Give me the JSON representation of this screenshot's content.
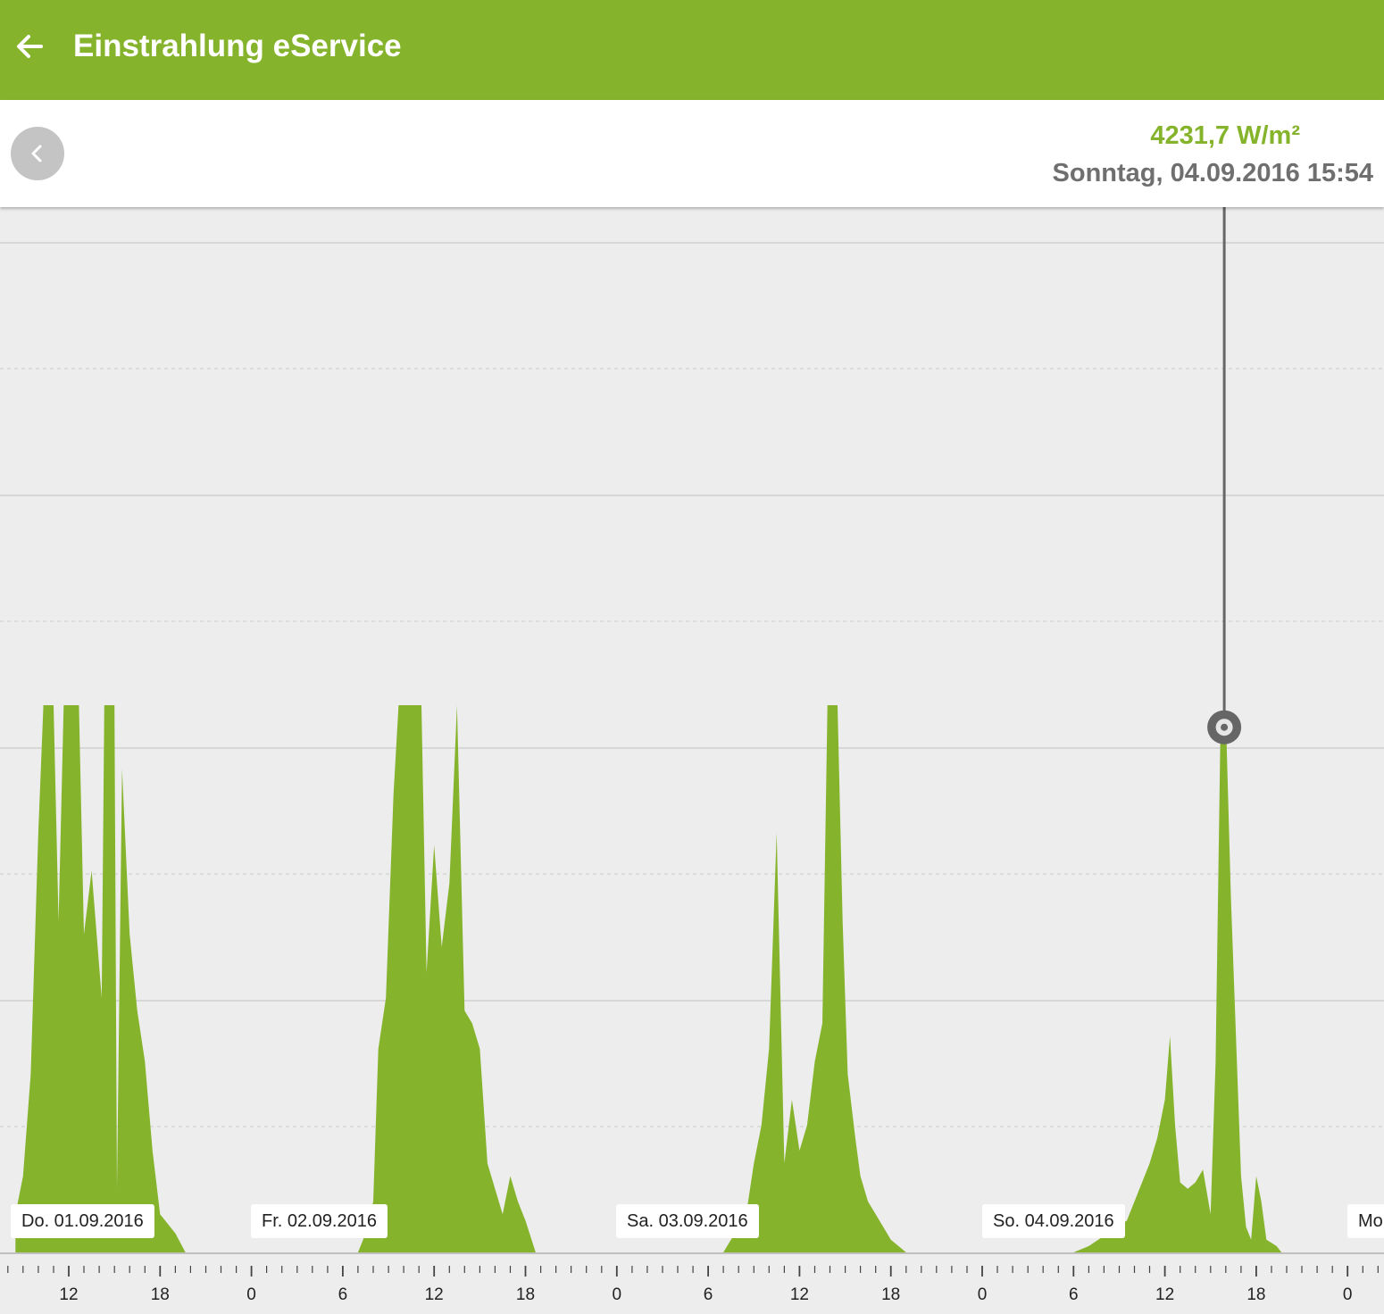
{
  "appbar": {
    "title": "Einstrahlung eService",
    "back_icon": "arrow-left-icon"
  },
  "infobar": {
    "prev_icon": "chevron-left-icon",
    "value": "4231,7 W/m²",
    "datetime": "Sonntag, 04.09.2016 15:54"
  },
  "colors": {
    "accent": "#85b42c",
    "cursor": "#666666",
    "background": "#ededed"
  },
  "chart_data": {
    "type": "area",
    "x_unit": "hour",
    "x_range": [
      "2016-09-01 08:30",
      "2016-09-05 00:00"
    ],
    "x_tick_labels": [
      "12",
      "18",
      "0",
      "6",
      "12",
      "18",
      "0",
      "6",
      "12",
      "18",
      "0",
      "6",
      "12",
      "18",
      "0"
    ],
    "day_labels": [
      "Do. 01.09.2016",
      "Fr. 02.09.2016",
      "Sa. 03.09.2016",
      "So. 04.09.2016",
      "Mo"
    ],
    "cursor": {
      "x": "2016-09-04 15:54",
      "y": 4231.7
    },
    "y_unit": "W/m²",
    "grid": true,
    "series": [
      {
        "points": [
          [
            "2016-09-01 08:30",
            300
          ],
          [
            "2016-09-01 09:00",
            600
          ],
          [
            "2016-09-01 09:30",
            1400
          ],
          [
            "2016-09-01 10:00",
            3300
          ],
          [
            "2016-09-01 10:20",
            4300
          ],
          [
            "2016-09-01 11:00",
            4300
          ],
          [
            "2016-09-01 11:20",
            2600
          ],
          [
            "2016-09-01 11:40",
            4300
          ],
          [
            "2016-09-01 12:40",
            4300
          ],
          [
            "2016-09-01 13:00",
            2500
          ],
          [
            "2016-09-01 13:30",
            3000
          ],
          [
            "2016-09-01 14:10",
            2000
          ],
          [
            "2016-09-01 14:20",
            4300
          ],
          [
            "2016-09-01 15:00",
            4300
          ],
          [
            "2016-09-01 15:10",
            500
          ],
          [
            "2016-09-01 15:30",
            3800
          ],
          [
            "2016-09-01 16:00",
            2500
          ],
          [
            "2016-09-01 16:30",
            1900
          ],
          [
            "2016-09-01 17:00",
            1500
          ],
          [
            "2016-09-01 17:30",
            800
          ],
          [
            "2016-09-01 18:00",
            300
          ],
          [
            "2016-09-01 19:00",
            150
          ],
          [
            "2016-09-01 19:40",
            0
          ],
          [
            "2016-09-02 07:00",
            0
          ],
          [
            "2016-09-02 07:30",
            150
          ],
          [
            "2016-09-02 08:00",
            400
          ],
          [
            "2016-09-02 08:20",
            1600
          ],
          [
            "2016-09-02 08:50",
            2000
          ],
          [
            "2016-09-02 09:20",
            3600
          ],
          [
            "2016-09-02 09:40",
            4300
          ],
          [
            "2016-09-02 11:10",
            4300
          ],
          [
            "2016-09-02 11:30",
            2200
          ],
          [
            "2016-09-02 12:00",
            3200
          ],
          [
            "2016-09-02 12:30",
            2400
          ],
          [
            "2016-09-02 13:00",
            2900
          ],
          [
            "2016-09-02 13:30",
            4300
          ],
          [
            "2016-09-02 14:00",
            1900
          ],
          [
            "2016-09-02 14:30",
            1800
          ],
          [
            "2016-09-02 15:00",
            1600
          ],
          [
            "2016-09-02 15:30",
            700
          ],
          [
            "2016-09-02 16:00",
            500
          ],
          [
            "2016-09-02 16:30",
            300
          ],
          [
            "2016-09-02 17:00",
            600
          ],
          [
            "2016-09-02 17:30",
            400
          ],
          [
            "2016-09-02 18:00",
            250
          ],
          [
            "2016-09-02 18:40",
            0
          ],
          [
            "2016-09-03 07:00",
            0
          ],
          [
            "2016-09-03 08:00",
            200
          ],
          [
            "2016-09-03 08:30",
            300
          ],
          [
            "2016-09-03 09:00",
            700
          ],
          [
            "2016-09-03 09:30",
            1000
          ],
          [
            "2016-09-03 10:00",
            1600
          ],
          [
            "2016-09-03 10:30",
            3300
          ],
          [
            "2016-09-03 11:00",
            700
          ],
          [
            "2016-09-03 11:30",
            1200
          ],
          [
            "2016-09-03 12:00",
            800
          ],
          [
            "2016-09-03 12:30",
            1000
          ],
          [
            "2016-09-03 13:00",
            1500
          ],
          [
            "2016-09-03 13:30",
            1800
          ],
          [
            "2016-09-03 13:50",
            4300
          ],
          [
            "2016-09-03 14:30",
            4300
          ],
          [
            "2016-09-03 14:50",
            2600
          ],
          [
            "2016-09-03 15:10",
            1400
          ],
          [
            "2016-09-03 15:40",
            900
          ],
          [
            "2016-09-03 16:00",
            600
          ],
          [
            "2016-09-03 16:30",
            400
          ],
          [
            "2016-09-03 17:00",
            300
          ],
          [
            "2016-09-03 18:00",
            100
          ],
          [
            "2016-09-03 19:00",
            0
          ],
          [
            "2016-09-04 06:00",
            0
          ],
          [
            "2016-09-04 07:00",
            50
          ],
          [
            "2016-09-04 09:30",
            250
          ],
          [
            "2016-09-04 10:00",
            400
          ],
          [
            "2016-09-04 10:30",
            550
          ],
          [
            "2016-09-04 11:00",
            700
          ],
          [
            "2016-09-04 11:30",
            900
          ],
          [
            "2016-09-04 12:00",
            1200
          ],
          [
            "2016-09-04 12:20",
            1700
          ],
          [
            "2016-09-04 12:40",
            1000
          ],
          [
            "2016-09-04 13:00",
            550
          ],
          [
            "2016-09-04 13:30",
            500
          ],
          [
            "2016-09-04 14:00",
            550
          ],
          [
            "2016-09-04 14:30",
            650
          ],
          [
            "2016-09-04 15:00",
            300
          ],
          [
            "2016-09-04 15:20",
            1500
          ],
          [
            "2016-09-04 15:40",
            4231.7
          ],
          [
            "2016-09-04 16:00",
            4231.7
          ],
          [
            "2016-09-04 16:20",
            2800
          ],
          [
            "2016-09-04 16:40",
            1700
          ],
          [
            "2016-09-04 17:00",
            600
          ],
          [
            "2016-09-04 17:20",
            200
          ],
          [
            "2016-09-04 17:40",
            100
          ],
          [
            "2016-09-04 18:00",
            600
          ],
          [
            "2016-09-04 18:20",
            400
          ],
          [
            "2016-09-04 18:40",
            100
          ],
          [
            "2016-09-04 19:20",
            50
          ],
          [
            "2016-09-04 19:40",
            0
          ],
          [
            "2016-09-04 23:00",
            0
          ]
        ]
      }
    ]
  }
}
